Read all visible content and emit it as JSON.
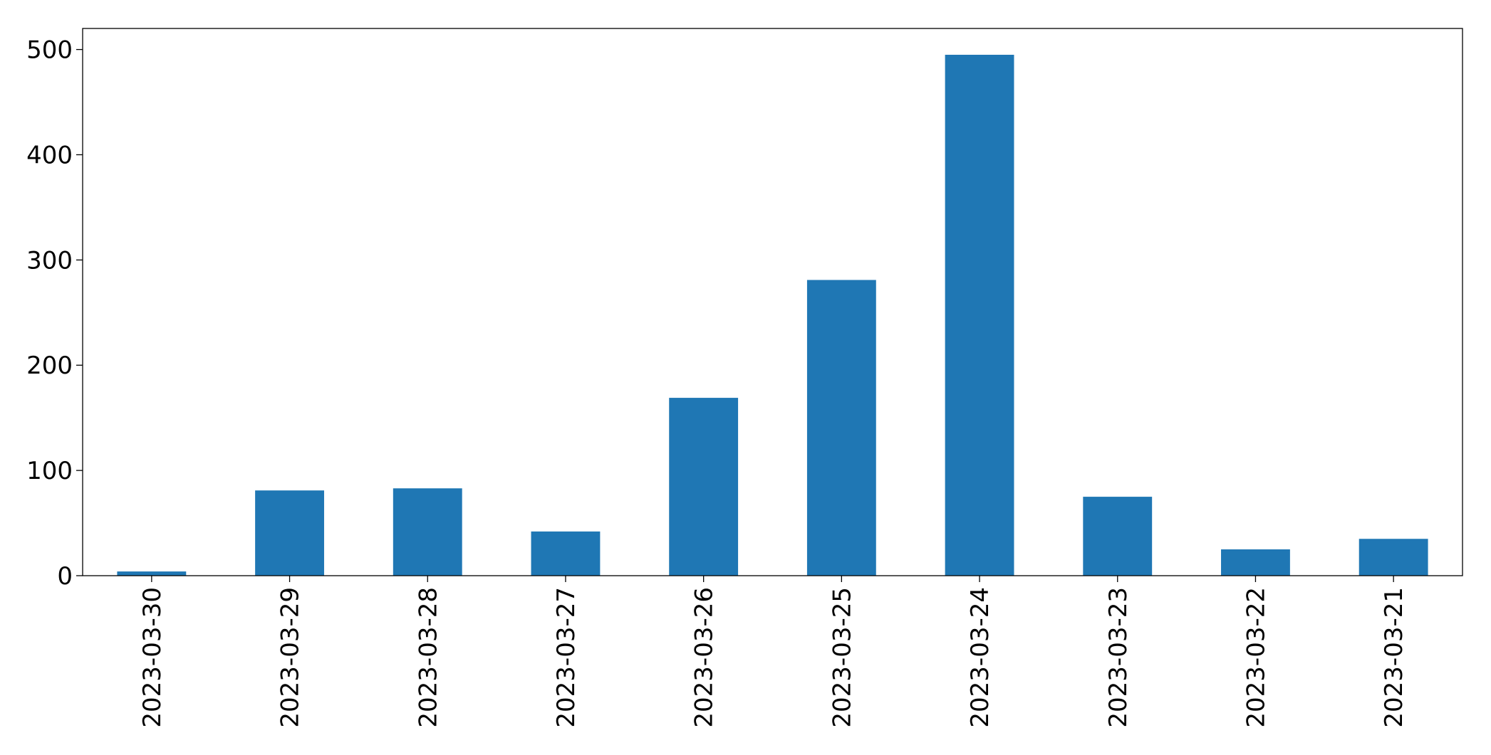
{
  "chart_data": {
    "type": "bar",
    "categories": [
      "2023-03-30",
      "2023-03-29",
      "2023-03-28",
      "2023-03-27",
      "2023-03-26",
      "2023-03-25",
      "2023-03-24",
      "2023-03-23",
      "2023-03-22",
      "2023-03-21"
    ],
    "values": [
      4,
      81,
      83,
      42,
      169,
      281,
      495,
      75,
      25,
      35
    ],
    "color": "#1f77b4",
    "ylim": [
      0,
      520
    ],
    "yticks": [
      0,
      100,
      200,
      300,
      400,
      500
    ],
    "grid": false
  }
}
